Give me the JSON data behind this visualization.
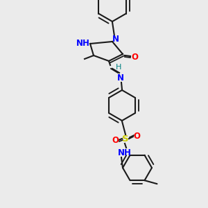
{
  "bg_color": "#ebebeb",
  "bond_color": "#1a1a1a",
  "bond_width": 1.5,
  "atom_colors": {
    "N": "#0000ff",
    "O": "#ff0000",
    "S": "#cccc00",
    "H": "#008080",
    "C": "#1a1a1a"
  },
  "font_size": 8.5
}
